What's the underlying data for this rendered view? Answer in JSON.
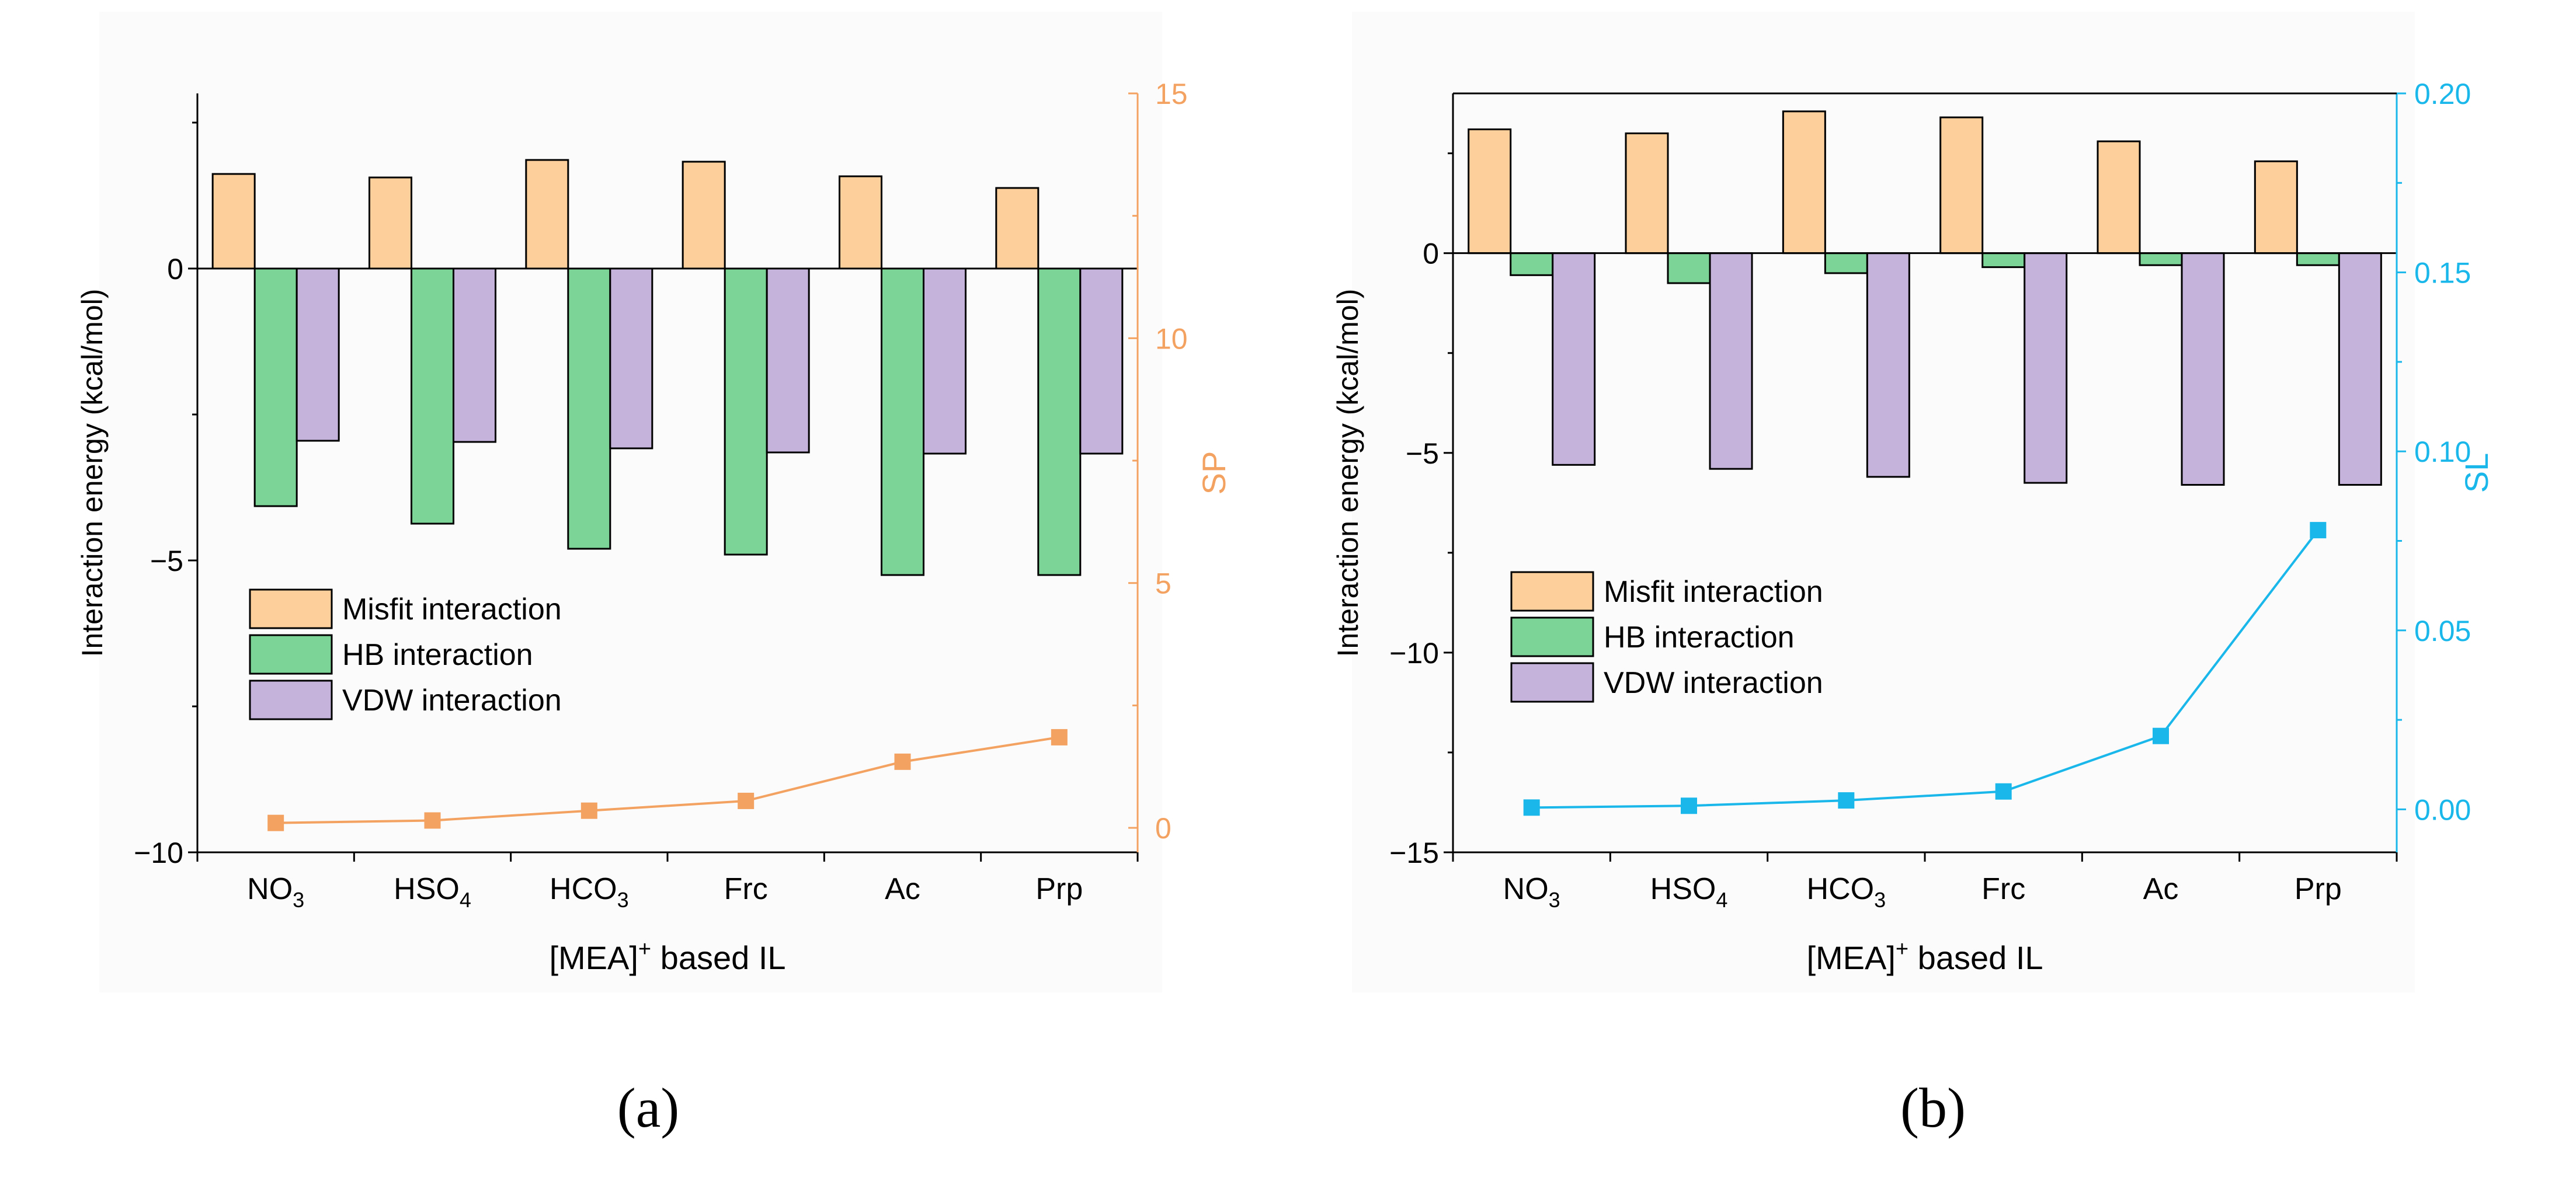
{
  "chart_data": [
    {
      "panel_label": "(a)",
      "type": "bar",
      "categories": [
        {
          "main": "NO",
          "sub": "3"
        },
        {
          "main": "HSO",
          "sub": "4"
        },
        {
          "main": "HCO",
          "sub": "3"
        },
        {
          "main": "Frc",
          "sub": ""
        },
        {
          "main": "Ac",
          "sub": ""
        },
        {
          "main": "Prp",
          "sub": ""
        }
      ],
      "xlabel": {
        "main": "[MEA]",
        "sup": "+",
        "rest": " based IL"
      },
      "ylabel": "Interaction energy (kcal/mol)",
      "ylim": [
        -10,
        3
      ],
      "yticks": [
        -10,
        -5,
        0
      ],
      "ytick_labels": [
        "−10",
        "−5",
        "0"
      ],
      "series": [
        {
          "name": "Misfit interaction",
          "color": "#FDD09B",
          "values": [
            1.62,
            1.56,
            1.86,
            1.83,
            1.58,
            1.38
          ]
        },
        {
          "name": "HB interaction",
          "color": "#7DD497",
          "values": [
            -4.07,
            -4.37,
            -4.8,
            -4.9,
            -5.25,
            -5.25
          ]
        },
        {
          "name": "VDW interaction",
          "color": "#C5B3DB",
          "values": [
            -2.95,
            -2.97,
            -3.08,
            -3.15,
            -3.17,
            -3.17
          ]
        }
      ],
      "secondary": {
        "name": "SP",
        "color": "#F4A261",
        "axis_label": "SP",
        "ylim": [
          -0.5,
          15
        ],
        "yticks": [
          0,
          5,
          10,
          15
        ],
        "ytick_labels": [
          "0",
          "5",
          "10",
          "15"
        ],
        "values": [
          0.1,
          0.15,
          0.35,
          0.55,
          1.35,
          1.85
        ]
      }
    },
    {
      "panel_label": "(b)",
      "type": "bar",
      "categories": [
        {
          "main": "NO",
          "sub": "3"
        },
        {
          "main": "HSO",
          "sub": "4"
        },
        {
          "main": "HCO",
          "sub": "3"
        },
        {
          "main": "Frc",
          "sub": ""
        },
        {
          "main": "Ac",
          "sub": ""
        },
        {
          "main": "Prp",
          "sub": ""
        }
      ],
      "xlabel": {
        "main": "[MEA]",
        "sup": "+",
        "rest": " based IL"
      },
      "ylabel": "Interaction energy (kcal/mol)",
      "ylim": [
        -15,
        4
      ],
      "yticks": [
        -15,
        -10,
        -5,
        0
      ],
      "ytick_labels": [
        "−15",
        "−10",
        "−5",
        "0"
      ],
      "series": [
        {
          "name": "Misfit interaction",
          "color": "#FDD09B",
          "values": [
            3.1,
            3.0,
            3.55,
            3.4,
            2.8,
            2.3
          ]
        },
        {
          "name": "HB interaction",
          "color": "#7DD497",
          "values": [
            -0.55,
            -0.75,
            -0.5,
            -0.35,
            -0.3,
            -0.3
          ]
        },
        {
          "name": "VDW interaction",
          "color": "#C5B3DB",
          "values": [
            -5.3,
            -5.4,
            -5.6,
            -5.75,
            -5.8,
            -5.8
          ]
        }
      ],
      "secondary": {
        "name": "SL",
        "color": "#1AB7EA",
        "axis_label": "SL",
        "ylim": [
          -0.012,
          0.2
        ],
        "yticks": [
          0,
          0.05,
          0.1,
          0.15,
          0.2
        ],
        "ytick_labels": [
          "0.00",
          "0.05",
          "0.10",
          "0.15",
          "0.20"
        ],
        "values": [
          0.0005,
          0.001,
          0.0025,
          0.005,
          0.0205,
          0.078
        ]
      }
    }
  ]
}
